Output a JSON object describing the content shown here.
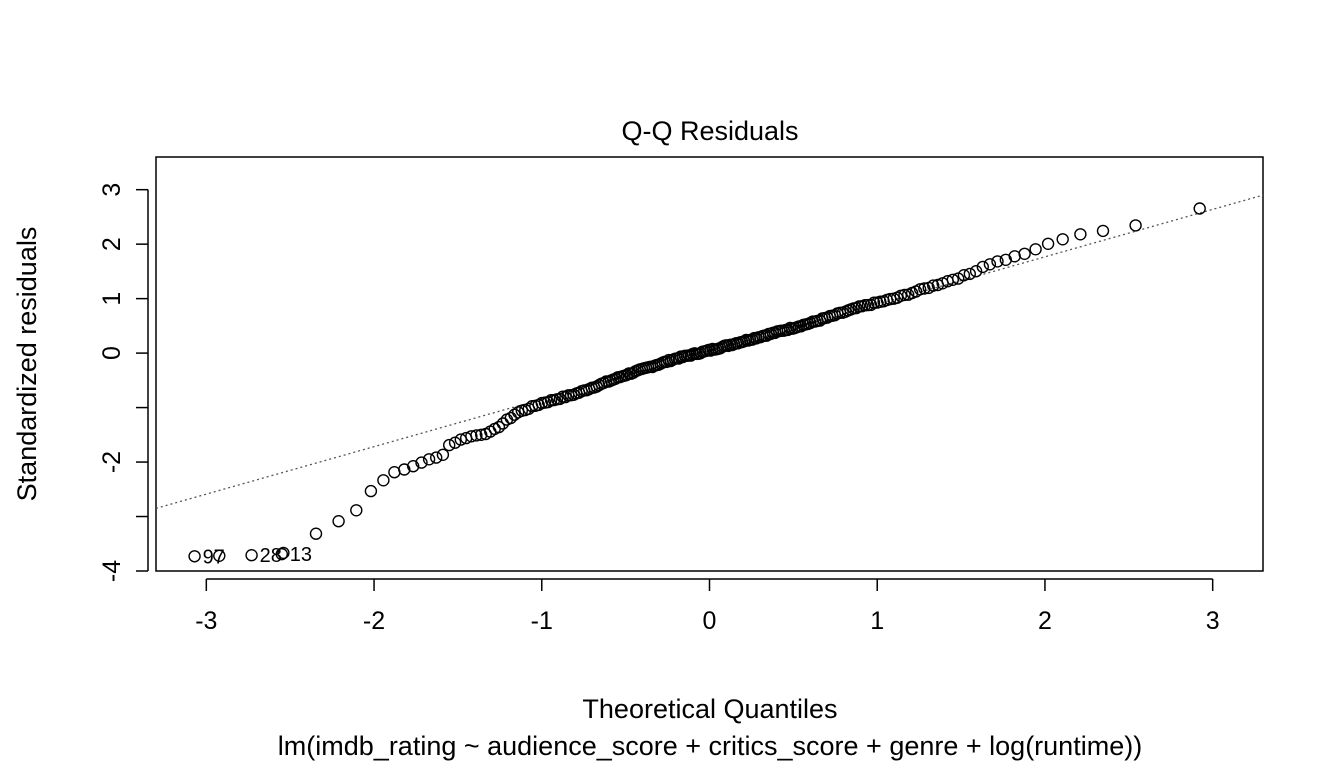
{
  "chart_data": {
    "type": "scatter",
    "title": "Q-Q Residuals",
    "xlabel": "Theoretical Quantiles",
    "ylabel": "Standardized residuals",
    "subtitle": "lm(imdb_rating ~ audience_score + critics_score + genre + log(runtime))",
    "xlim": [
      -3.3,
      3.3
    ],
    "ylim": [
      -4.0,
      3.6
    ],
    "x_ticks": [
      -3,
      -2,
      -1,
      0,
      1,
      2,
      3
    ],
    "x_tick_labels": [
      "-3",
      "-2",
      "-1",
      "0",
      "1",
      "2",
      "3"
    ],
    "y_ticks": [
      -4,
      -3,
      -2,
      -1,
      0,
      1,
      2,
      3
    ],
    "y_tick_labels": [
      "-4",
      "",
      "-2",
      "",
      "0",
      "1",
      "2",
      "3"
    ],
    "reference_line": {
      "style": "dotted",
      "x": [
        -3.3,
        3.3
      ],
      "y": [
        -2.85,
        2.9
      ]
    },
    "point_style": "open-circle",
    "quantile_curve": [
      [
        -3.07,
        -3.73
      ],
      [
        -2.73,
        -3.71
      ],
      [
        -2.55,
        -3.69
      ],
      [
        -2.42,
        -3.4
      ],
      [
        -2.32,
        -3.27
      ],
      [
        -2.23,
        -3.15
      ],
      [
        -2.17,
        -2.92
      ],
      [
        -2.1,
        -2.88
      ],
      [
        -2.05,
        -2.67
      ],
      [
        -2.0,
        -2.45
      ],
      [
        -1.9,
        -2.22
      ],
      [
        -1.8,
        -2.12
      ],
      [
        -1.7,
        -1.98
      ],
      [
        -1.6,
        -1.9
      ],
      [
        -1.55,
        -1.68
      ],
      [
        -1.45,
        -1.55
      ],
      [
        -1.3,
        -1.45
      ],
      [
        -1.15,
        -1.1
      ],
      [
        -1.0,
        -0.92
      ],
      [
        -0.8,
        -0.75
      ],
      [
        -0.5,
        -0.4
      ],
      [
        -0.2,
        -0.1
      ],
      [
        0.0,
        0.05
      ],
      [
        0.3,
        0.3
      ],
      [
        0.6,
        0.55
      ],
      [
        0.9,
        0.85
      ],
      [
        1.1,
        1.0
      ],
      [
        1.3,
        1.2
      ],
      [
        1.45,
        1.35
      ],
      [
        1.55,
        1.45
      ],
      [
        1.65,
        1.62
      ],
      [
        1.8,
        1.75
      ],
      [
        1.95,
        1.9
      ],
      [
        2.05,
        2.05
      ],
      [
        2.25,
        2.2
      ],
      [
        2.45,
        2.31
      ],
      [
        2.71,
        2.42
      ],
      [
        3.07,
        2.82
      ]
    ],
    "n_points": 220,
    "point_labels": [
      {
        "label": "97",
        "x": -3.07,
        "y": -3.73
      },
      {
        "label": "28",
        "x": -2.73,
        "y": -3.71
      },
      {
        "label": "13",
        "x": -2.55,
        "y": -3.69
      }
    ]
  }
}
